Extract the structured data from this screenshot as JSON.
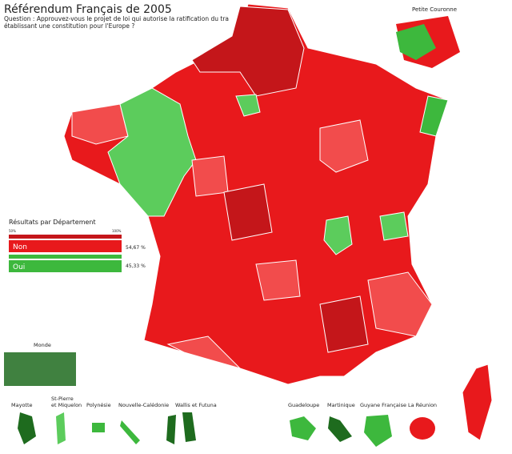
{
  "header": {
    "title": "Référendum Français de 2005",
    "question": [
      "Question : Approuvez-vous le projet de loi qui autorise la ratification du tra",
      "établissant une constitution pour l'Europe ?"
    ]
  },
  "inset_title": "Petite Couronne",
  "legend": {
    "title": "Résultats par Département",
    "scale": [
      "50%",
      "100%"
    ],
    "items": [
      {
        "label": "Non",
        "result": "54,67 %"
      },
      {
        "label": "Oui",
        "result": "45,33 %"
      }
    ]
  },
  "territories": [
    "Monde",
    "Mayotte",
    "St-Pierre",
    "et Miquelon",
    "Polynésie",
    "Nouvelle-Calédonie",
    "Wallis et Futuna",
    "Guadeloupe",
    "Martinique",
    "Guyane Française",
    "La Réunion"
  ]
}
